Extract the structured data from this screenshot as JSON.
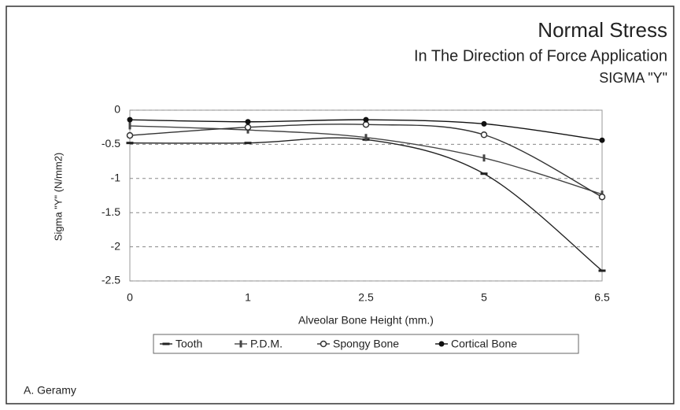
{
  "chart_data": {
    "type": "line",
    "title": "Normal Stress",
    "subtitle": "In The Direction of Force Application",
    "subtitle2": "SIGMA \"Y\"",
    "xlabel": "Alveolar Bone Height (mm.)",
    "ylabel": "Sigma \"Y\" (N/mm2)",
    "author": "A. Geramy",
    "categories": [
      "0",
      "1",
      "2.5",
      "5",
      "6.5"
    ],
    "ylim": [
      -2.5,
      0
    ],
    "yticks": [
      -2.5,
      -2,
      -1.5,
      -1,
      -0.5,
      0
    ],
    "grid": true,
    "legend": "bottom",
    "series": [
      {
        "name": "Tooth",
        "color": "#222222",
        "marker": "dash",
        "values": [
          -0.48,
          -0.48,
          -0.43,
          -0.93,
          -2.35
        ]
      },
      {
        "name": "P.D.M.",
        "color": "#444444",
        "marker": "tick",
        "values": [
          -0.23,
          -0.29,
          -0.4,
          -0.7,
          -1.23
        ]
      },
      {
        "name": "Spongy Bone",
        "color": "#333333",
        "marker": "circle",
        "values": [
          -0.37,
          -0.25,
          -0.21,
          -0.36,
          -1.27
        ]
      },
      {
        "name": "Cortical Bone",
        "color": "#111111",
        "marker": "dot",
        "values": [
          -0.14,
          -0.17,
          -0.14,
          -0.2,
          -0.44
        ]
      }
    ]
  }
}
